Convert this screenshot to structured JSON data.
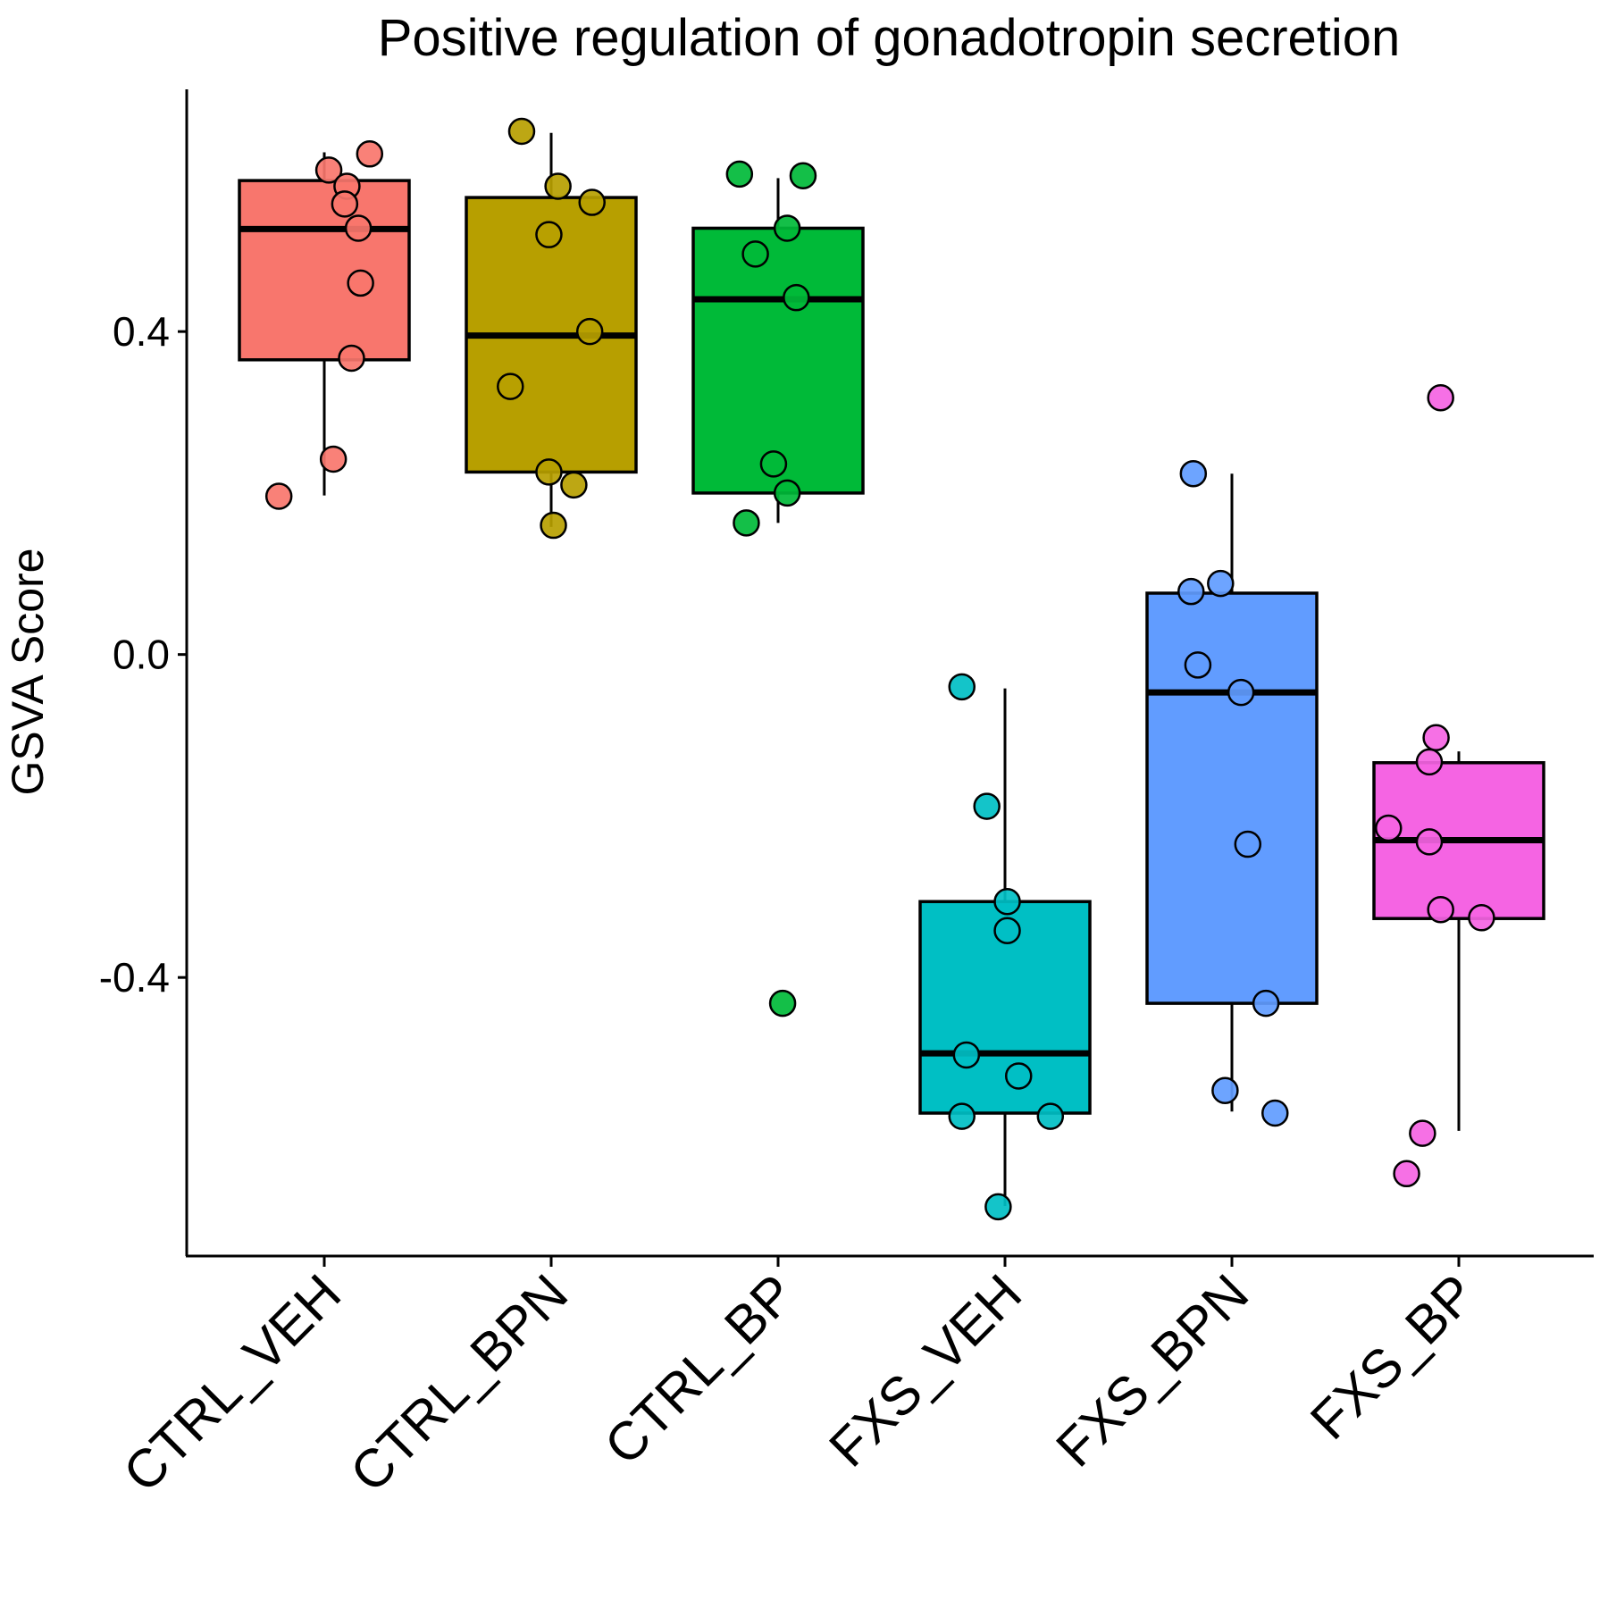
{
  "chart_data": {
    "type": "box",
    "title": "Positive regulation of gonadotropin secretion",
    "xlabel": "",
    "ylabel": "GSVA Score",
    "ylim": [
      -0.745,
      0.7
    ],
    "yticks": [
      "0.4",
      "0.0",
      "-0.4"
    ],
    "ytick_values": [
      0.4,
      0.0,
      -0.4
    ],
    "grid": false,
    "legend": "none",
    "categories": [
      "CTRL_VEH",
      "CTRL_BPN",
      "CTRL_BP",
      "FXS_VEH",
      "FXS_BPN",
      "FXS_BP"
    ],
    "colors": [
      "#F8766D",
      "#B79F00",
      "#00BA38",
      "#00BFC4",
      "#619CFF",
      "#F564E3"
    ],
    "boxes": [
      {
        "group": "CTRL_VEH",
        "q1": 0.365,
        "median": 0.527,
        "q3": 0.587,
        "whisker_low": 0.197,
        "whisker_high": 0.622
      },
      {
        "group": "CTRL_BPN",
        "q1": 0.226,
        "median": 0.395,
        "q3": 0.566,
        "whisker_low": 0.158,
        "whisker_high": 0.646
      },
      {
        "group": "CTRL_BP",
        "q1": 0.2,
        "median": 0.44,
        "q3": 0.528,
        "whisker_low": 0.163,
        "whisker_high": 0.59
      },
      {
        "group": "FXS_VEH",
        "q1": -0.568,
        "median": -0.494,
        "q3": -0.306,
        "whisker_low": -0.683,
        "whisker_high": -0.042
      },
      {
        "group": "FXS_BPN",
        "q1": -0.432,
        "median": -0.047,
        "q3": 0.076,
        "whisker_low": -0.566,
        "whisker_high": 0.224
      },
      {
        "group": "FXS_BP",
        "q1": -0.327,
        "median": -0.23,
        "q3": -0.134,
        "whisker_low": -0.59,
        "whisker_high": -0.12
      }
    ],
    "points": [
      [
        0.62,
        0.6,
        0.58,
        0.558,
        0.528,
        0.46,
        0.367,
        0.242,
        0.196
      ],
      [
        0.648,
        0.58,
        0.56,
        0.52,
        0.4,
        0.332,
        0.226,
        0.21,
        0.16
      ],
      [
        0.595,
        0.593,
        0.528,
        0.496,
        0.442,
        0.236,
        0.2,
        0.163,
        -0.432
      ],
      [
        -0.04,
        -0.188,
        -0.306,
        -0.342,
        -0.496,
        -0.522,
        -0.572,
        -0.572,
        -0.684
      ],
      [
        0.224,
        0.088,
        0.078,
        -0.013,
        -0.047,
        -0.235,
        -0.432,
        -0.54,
        -0.568
      ],
      [
        0.318,
        -0.103,
        -0.133,
        -0.215,
        -0.232,
        -0.316,
        -0.326,
        -0.593,
        -0.643
      ]
    ],
    "jitter": [
      [
        0.2,
        0.02,
        0.1,
        0.09,
        0.15,
        0.16,
        0.12,
        0.04,
        -0.2
      ],
      [
        -0.13,
        0.03,
        0.18,
        -0.01,
        0.17,
        -0.18,
        -0.01,
        0.1,
        0.01
      ],
      [
        -0.17,
        0.11,
        0.04,
        -0.1,
        0.08,
        -0.02,
        0.04,
        -0.14,
        0.02
      ],
      [
        -0.19,
        -0.08,
        0.01,
        0.01,
        -0.17,
        0.06,
        -0.19,
        0.2,
        -0.03
      ],
      [
        -0.17,
        -0.05,
        -0.18,
        -0.15,
        0.04,
        0.07,
        0.15,
        -0.03,
        0.19
      ],
      [
        -0.08,
        -0.1,
        -0.13,
        -0.31,
        -0.13,
        -0.08,
        0.1,
        -0.16,
        -0.23
      ]
    ]
  }
}
